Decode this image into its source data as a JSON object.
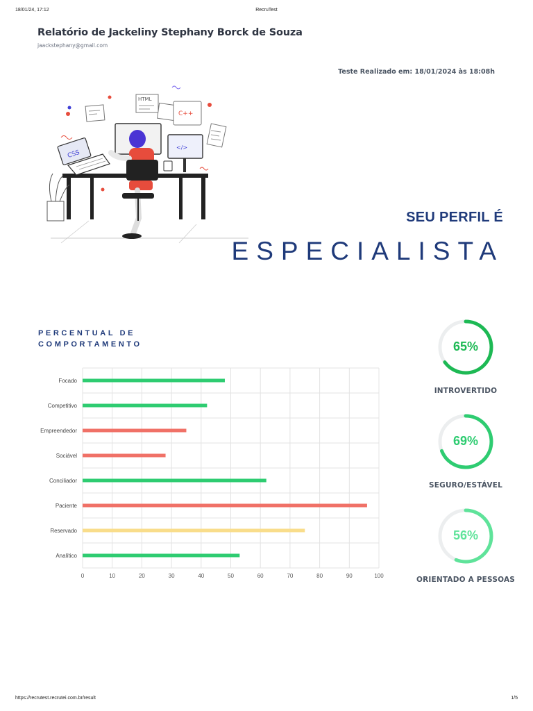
{
  "print_header": {
    "date": "18/01/24, 17:12",
    "title": "RecruTest"
  },
  "report": {
    "title": "Relatório de Jackeliny Stephany Borck de Souza",
    "email": "jaackstephany@gmail.com",
    "test_date": "Teste Realizado em: 18/01/2024 às 18:08h"
  },
  "profile": {
    "label": "SEU PERFIL É",
    "value": "ESPECIALISTA"
  },
  "section": {
    "title": "PERCENTUAL DE COMPORTAMENTO"
  },
  "colors": {
    "green": "#2ecc71",
    "red": "#f07167",
    "yellow": "#f9dd8b",
    "navy": "#1f3a7a"
  },
  "chart_data": {
    "type": "bar",
    "orientation": "horizontal",
    "categories": [
      "Focado",
      "Competitivo",
      "Empreendedor",
      "Sociável",
      "Conciliador",
      "Paciente",
      "Reservado",
      "Analítico"
    ],
    "values": [
      48,
      42,
      35,
      28,
      62,
      96,
      75,
      53
    ],
    "bar_colors": [
      "#2ecc71",
      "#2ecc71",
      "#f07167",
      "#f07167",
      "#2ecc71",
      "#f07167",
      "#f9dd8b",
      "#2ecc71"
    ],
    "xlim": [
      0,
      100
    ],
    "xticks": [
      "0",
      "10",
      "20",
      "30",
      "40",
      "50",
      "60",
      "70",
      "80",
      "90",
      "100"
    ],
    "grid": true
  },
  "gauges": [
    {
      "value": 65,
      "text": "65%",
      "label": "INTROVERTIDO",
      "color": "#1db954"
    },
    {
      "value": 69,
      "text": "69%",
      "label": "SEGURO/ESTÁVEL",
      "color": "#2ecc71"
    },
    {
      "value": 56,
      "text": "56%",
      "label": "ORIENTADO A PESSOAS",
      "color": "#5fe39a"
    }
  ],
  "illustration": {
    "screen_text_css": "CSS",
    "screen_text_html": "HTML",
    "screen_text_cpp": "C++"
  },
  "print_footer": {
    "url": "https://recrutest.recrutei.com.br/result",
    "page": "1/5"
  }
}
